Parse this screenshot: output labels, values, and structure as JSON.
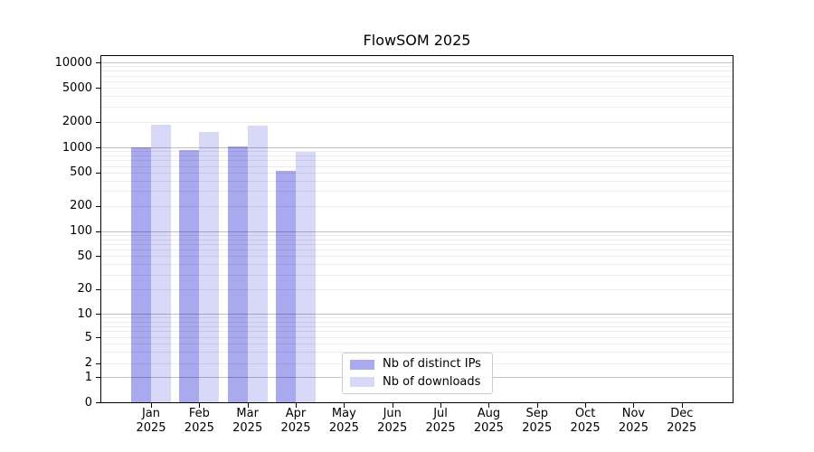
{
  "chart_data": {
    "type": "bar",
    "title": "FlowSOM 2025",
    "categories": [
      "Jan 2025",
      "Feb 2025",
      "Mar 2025",
      "Apr 2025",
      "May 2025",
      "Jun 2025",
      "Jul 2025",
      "Aug 2025",
      "Sep 2025",
      "Oct 2025",
      "Nov 2025",
      "Dec 2025"
    ],
    "x_tick_months": [
      "Jan",
      "Feb",
      "Mar",
      "Apr",
      "May",
      "Jun",
      "Jul",
      "Aug",
      "Sep",
      "Oct",
      "Nov",
      "Dec"
    ],
    "x_tick_year": "2025",
    "series": [
      {
        "name": "Nb of distinct IPs",
        "color": "#a9a9ef",
        "values": [
          1000,
          935,
          1030,
          520,
          null,
          null,
          null,
          null,
          null,
          null,
          null,
          null
        ]
      },
      {
        "name": "Nb of downloads",
        "color": "#d8d8f8",
        "values": [
          1830,
          1530,
          1800,
          890,
          null,
          null,
          null,
          null,
          null,
          null,
          null,
          null
        ]
      }
    ],
    "yscale": "symlog",
    "yticks": [
      0,
      1,
      2,
      5,
      10,
      20,
      50,
      100,
      200,
      500,
      1000,
      2000,
      5000,
      10000
    ],
    "ylim": [
      0,
      12000
    ],
    "xlabel": "",
    "ylabel": "",
    "grid": "horizontal major+minor",
    "legend_position": "lower center inside plot"
  },
  "legend": {
    "items": [
      {
        "label": "Nb of distinct IPs",
        "color": "#a9a9ef"
      },
      {
        "label": "Nb of downloads",
        "color": "#d8d8f8"
      }
    ]
  },
  "colors": {
    "background": "#ffffff",
    "bar_distinct_ips": "#a9a9ef",
    "bar_downloads": "#d8d8f8",
    "grid_minor": "#ececec",
    "grid_major": "#c2c2c2",
    "axis": "#000000",
    "text": "#000000",
    "legend_border": "#cccccc"
  }
}
